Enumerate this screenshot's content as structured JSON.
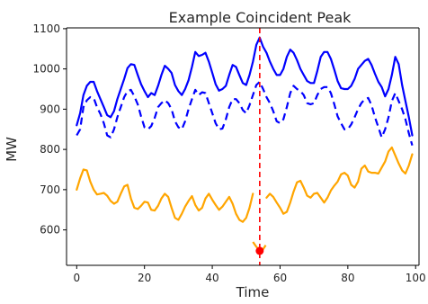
{
  "chart_data": {
    "type": "line",
    "title": "Example Coincident Peak",
    "xlabel": "Time",
    "ylabel": "MW",
    "xlim": [
      -3,
      101
    ],
    "ylim": [
      512,
      1102
    ],
    "xticks": [
      0,
      20,
      40,
      60,
      80,
      100
    ],
    "yticks": [
      600,
      700,
      800,
      900,
      1000,
      1100
    ],
    "grid": false,
    "legend": "none",
    "peak_time": 54,
    "peak_marker": {
      "x": 54,
      "y": 548
    },
    "colors": {
      "blue": "#0000ff",
      "orange": "#ffa500",
      "peak_line": "#ff0000",
      "axis": "#000000"
    },
    "series": [
      {
        "style": "solid",
        "color": "#0000ff",
        "x": [
          0,
          1,
          2,
          3,
          4,
          5,
          6,
          7,
          8,
          9,
          10,
          11,
          12,
          13,
          14,
          15,
          16,
          17,
          18,
          19,
          20,
          21,
          22,
          23,
          24,
          25,
          26,
          27,
          28,
          29,
          30,
          31,
          32,
          33,
          34,
          35,
          36,
          37,
          38,
          39,
          40,
          41,
          42,
          43,
          44,
          45,
          46,
          47,
          48,
          49,
          50,
          51,
          52,
          53,
          54,
          55,
          56,
          57,
          58,
          59,
          60,
          61,
          62,
          63,
          64,
          65,
          66,
          67,
          68,
          69,
          70,
          71,
          72,
          73,
          74,
          75,
          76,
          77,
          78,
          79,
          80,
          81,
          82,
          83,
          84,
          85,
          86,
          87,
          88,
          89,
          90,
          91,
          92,
          93,
          94,
          95,
          96,
          97,
          98,
          99
        ],
        "values": [
          860,
          890,
          935,
          958,
          968,
          968,
          945,
          925,
          905,
          885,
          880,
          895,
          925,
          950,
          975,
          1002,
          1012,
          1010,
          985,
          962,
          945,
          930,
          940,
          935,
          958,
          985,
          1008,
          1000,
          990,
          960,
          945,
          935,
          950,
          972,
          1005,
          1042,
          1032,
          1035,
          1040,
          1018,
          990,
          962,
          946,
          950,
          958,
          985,
          1010,
          1005,
          985,
          965,
          960,
          985,
          1018,
          1060,
          1078,
          1055,
          1040,
          1018,
          1000,
          985,
          985,
          1000,
          1030,
          1048,
          1040,
          1022,
          1000,
          985,
          970,
          965,
          965,
          995,
          1030,
          1042,
          1042,
          1025,
          998,
          970,
          952,
          950,
          950,
          958,
          975,
          1000,
          1010,
          1020,
          1025,
          1010,
          988,
          968,
          955,
          932,
          950,
          985,
          1030,
          1012,
          960,
          920,
          880,
          835
        ]
      },
      {
        "style": "dashed",
        "color": "#0000ff",
        "x": [
          0,
          1,
          2,
          3,
          4,
          5,
          6,
          7,
          8,
          9,
          10,
          11,
          12,
          13,
          14,
          15,
          16,
          17,
          18,
          19,
          20,
          21,
          22,
          23,
          24,
          25,
          26,
          27,
          28,
          29,
          30,
          31,
          32,
          33,
          34,
          35,
          36,
          37,
          38,
          39,
          40,
          41,
          42,
          43,
          44,
          45,
          46,
          47,
          48,
          49,
          50,
          51,
          52,
          53,
          54,
          55,
          56,
          57,
          58,
          59,
          60,
          61,
          62,
          63,
          64,
          65,
          66,
          67,
          68,
          69,
          70,
          71,
          72,
          73,
          74,
          75,
          76,
          77,
          78,
          79,
          80,
          81,
          82,
          83,
          84,
          85,
          86,
          87,
          88,
          89,
          90,
          91,
          92,
          93,
          94,
          95,
          96,
          97,
          98,
          99
        ],
        "values": [
          835,
          850,
          905,
          922,
          930,
          928,
          905,
          888,
          865,
          835,
          830,
          850,
          880,
          905,
          930,
          945,
          948,
          932,
          912,
          882,
          855,
          850,
          858,
          878,
          905,
          915,
          922,
          915,
          900,
          870,
          855,
          850,
          870,
          900,
          925,
          948,
          935,
          942,
          940,
          915,
          890,
          865,
          850,
          852,
          875,
          905,
          925,
          925,
          915,
          898,
          890,
          910,
          935,
          960,
          968,
          950,
          930,
          915,
          895,
          870,
          865,
          875,
          905,
          940,
          958,
          950,
          945,
          935,
          915,
          912,
          915,
          935,
          950,
          955,
          955,
          940,
          912,
          882,
          865,
          850,
          850,
          862,
          880,
          900,
          915,
          925,
          928,
          910,
          880,
          855,
          830,
          850,
          880,
          920,
          940,
          920,
          900,
          875,
          840,
          810
        ]
      },
      {
        "style": "solid",
        "color": "#ffa500",
        "x": [
          0,
          1,
          2,
          3,
          4,
          5,
          6,
          7,
          8,
          9,
          10,
          11,
          12,
          13,
          14,
          15,
          16,
          17,
          18,
          19,
          20,
          21,
          22,
          23,
          24,
          25,
          26,
          27,
          28,
          29,
          30,
          31,
          32,
          33,
          34,
          35,
          36,
          37,
          38,
          39,
          40,
          41,
          42,
          43,
          44,
          45,
          46,
          47,
          48,
          49,
          50,
          51,
          52
        ],
        "values": [
          700,
          728,
          750,
          748,
          720,
          700,
          688,
          690,
          692,
          685,
          672,
          665,
          670,
          690,
          708,
          712,
          678,
          655,
          652,
          660,
          670,
          668,
          650,
          648,
          660,
          678,
          690,
          682,
          655,
          630,
          625,
          640,
          658,
          672,
          684,
          662,
          648,
          655,
          678,
          690,
          675,
          662,
          650,
          658,
          670,
          682,
          665,
          640,
          625,
          620,
          630,
          655,
          690
        ]
      },
      {
        "style": "dashed",
        "color": "#ffa500",
        "x": [
          52,
          53,
          54,
          55,
          56
        ],
        "values": [
          570,
          558,
          550,
          552,
          565
        ]
      },
      {
        "style": "solid",
        "color": "#ffa500",
        "x": [
          56,
          57,
          58,
          59,
          60,
          61,
          62,
          63,
          64,
          65,
          66,
          67,
          68,
          69,
          70,
          71,
          72,
          73,
          74,
          75,
          76,
          77,
          78,
          79,
          80,
          81,
          82,
          83,
          84,
          85,
          86,
          87,
          88,
          89,
          90,
          91,
          92,
          93,
          94,
          95,
          96,
          97,
          98,
          99
        ],
        "values": [
          680,
          690,
          682,
          668,
          655,
          640,
          645,
          668,
          695,
          718,
          722,
          705,
          685,
          680,
          690,
          692,
          680,
          668,
          680,
          698,
          710,
          720,
          738,
          742,
          735,
          712,
          705,
          720,
          752,
          760,
          745,
          742,
          742,
          740,
          755,
          770,
          795,
          805,
          785,
          765,
          748,
          740,
          760,
          788
        ]
      }
    ]
  }
}
